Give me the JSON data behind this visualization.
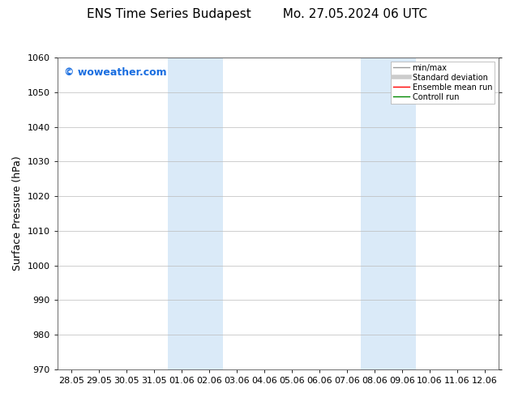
{
  "title_left": "ENS Time Series Budapest",
  "title_right": "Mo. 27.05.2024 06 UTC",
  "ylabel": "Surface Pressure (hPa)",
  "ylim": [
    970,
    1060
  ],
  "yticks": [
    970,
    980,
    990,
    1000,
    1010,
    1020,
    1030,
    1040,
    1050,
    1060
  ],
  "xtick_labels": [
    "28.05",
    "29.05",
    "30.05",
    "31.05",
    "01.06",
    "02.06",
    "03.06",
    "04.06",
    "05.06",
    "06.06",
    "07.06",
    "08.06",
    "09.06",
    "10.06",
    "11.06",
    "12.06"
  ],
  "xtick_positions": [
    0,
    1,
    2,
    3,
    4,
    5,
    6,
    7,
    8,
    9,
    10,
    11,
    12,
    13,
    14,
    15
  ],
  "shaded_regions": [
    {
      "xstart": 4.0,
      "xend": 6.0,
      "color": "#daeaf8"
    },
    {
      "xstart": 11.0,
      "xend": 13.0,
      "color": "#daeaf8"
    }
  ],
  "watermark": "© woweather.com",
  "watermark_color": "#1a6ee0",
  "background_color": "#ffffff",
  "grid_color": "#bbbbbb",
  "legend_items": [
    {
      "label": "min/max",
      "color": "#999999",
      "lw": 1.0
    },
    {
      "label": "Standard deviation",
      "color": "#cccccc",
      "lw": 4.0
    },
    {
      "label": "Ensemble mean run",
      "color": "#ff0000",
      "lw": 1.0
    },
    {
      "label": "Controll run",
      "color": "#008800",
      "lw": 1.0
    }
  ],
  "title_fontsize": 11,
  "ylabel_fontsize": 9,
  "tick_fontsize": 8,
  "watermark_fontsize": 9
}
